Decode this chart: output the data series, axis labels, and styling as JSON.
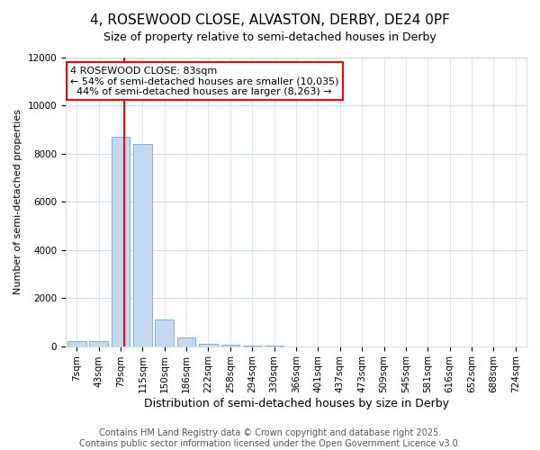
{
  "title_line1": "4, ROSEWOOD CLOSE, ALVASTON, DERBY, DE24 0PF",
  "title_line2": "Size of property relative to semi-detached houses in Derby",
  "xlabel": "Distribution of semi-detached houses by size in Derby",
  "ylabel": "Number of semi-detached properties",
  "categories": [
    "7sqm",
    "43sqm",
    "79sqm",
    "115sqm",
    "150sqm",
    "186sqm",
    "222sqm",
    "258sqm",
    "294sqm",
    "330sqm",
    "366sqm",
    "401sqm",
    "437sqm",
    "473sqm",
    "509sqm",
    "545sqm",
    "581sqm",
    "616sqm",
    "652sqm",
    "688sqm",
    "724sqm"
  ],
  "values": [
    200,
    200,
    8700,
    8400,
    1100,
    350,
    100,
    50,
    10,
    5,
    3,
    2,
    1,
    1,
    0,
    0,
    0,
    0,
    0,
    0,
    0
  ],
  "bar_color": "#c5d8f0",
  "bar_edge_color": "#7aafd4",
  "property_line_x": 2.15,
  "property_size": "83sqm",
  "pct_smaller": 54,
  "n_smaller": 10035,
  "pct_larger": 44,
  "n_larger": 8263,
  "annotation_box_color": "red",
  "ylim": [
    0,
    12000
  ],
  "yticks": [
    0,
    2000,
    4000,
    6000,
    8000,
    10000,
    12000
  ],
  "footer_line1": "Contains HM Land Registry data © Crown copyright and database right 2025.",
  "footer_line2": "Contains public sector information licensed under the Open Government Licence v3.0.",
  "bg_color": "#ffffff",
  "grid_color": "#d0dcec",
  "title1_fontsize": 11,
  "title2_fontsize": 9,
  "xlabel_fontsize": 9,
  "ylabel_fontsize": 8,
  "tick_fontsize": 7.5,
  "footer_fontsize": 7,
  "ann_fontsize": 8
}
